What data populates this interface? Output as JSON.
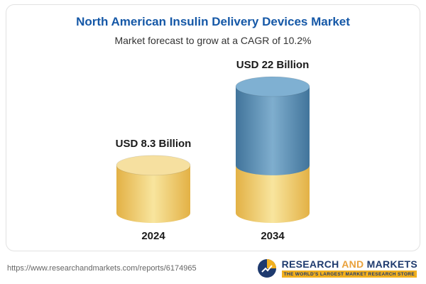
{
  "chart_data": {
    "type": "bar",
    "title": "North American Insulin Delivery Devices Market",
    "subtitle": "Market forecast to grow at a CAGR of 10.2%",
    "categories": [
      "2024",
      "2034"
    ],
    "values": [
      8.3,
      22
    ],
    "value_labels": [
      "USD 8.3 Billion",
      "USD 22 Billion"
    ],
    "unit": "USD Billion",
    "cagr": "10.2%",
    "ylim": [
      0,
      22
    ],
    "legend": "none",
    "grid": false,
    "notes": "2034 bar is a stacked cylinder: gold base equal to 2024 value with blue growth segment on top"
  },
  "colors": {
    "title": "#1558A7",
    "subtitle": "#333333",
    "bar_gold_edge": "#E3B145",
    "bar_gold_mid": "#F8E59E",
    "bar_gold_cap": "#F6E0A0",
    "bar_blue_edge": "#41749B",
    "bar_blue_mid": "#7FAECE",
    "bar_blue_cap": "#7FB0D2",
    "logo_navy": "#1E3A6E",
    "logo_gold": "#F2B01E"
  },
  "footer": {
    "url": "https://www.researchandmarkets.com/reports/6174965",
    "logo": {
      "word1": "RESEARCH",
      "word2": "AND",
      "word3": "MARKETS",
      "tagline": "THE WORLD'S LARGEST MARKET RESEARCH STORE"
    }
  }
}
